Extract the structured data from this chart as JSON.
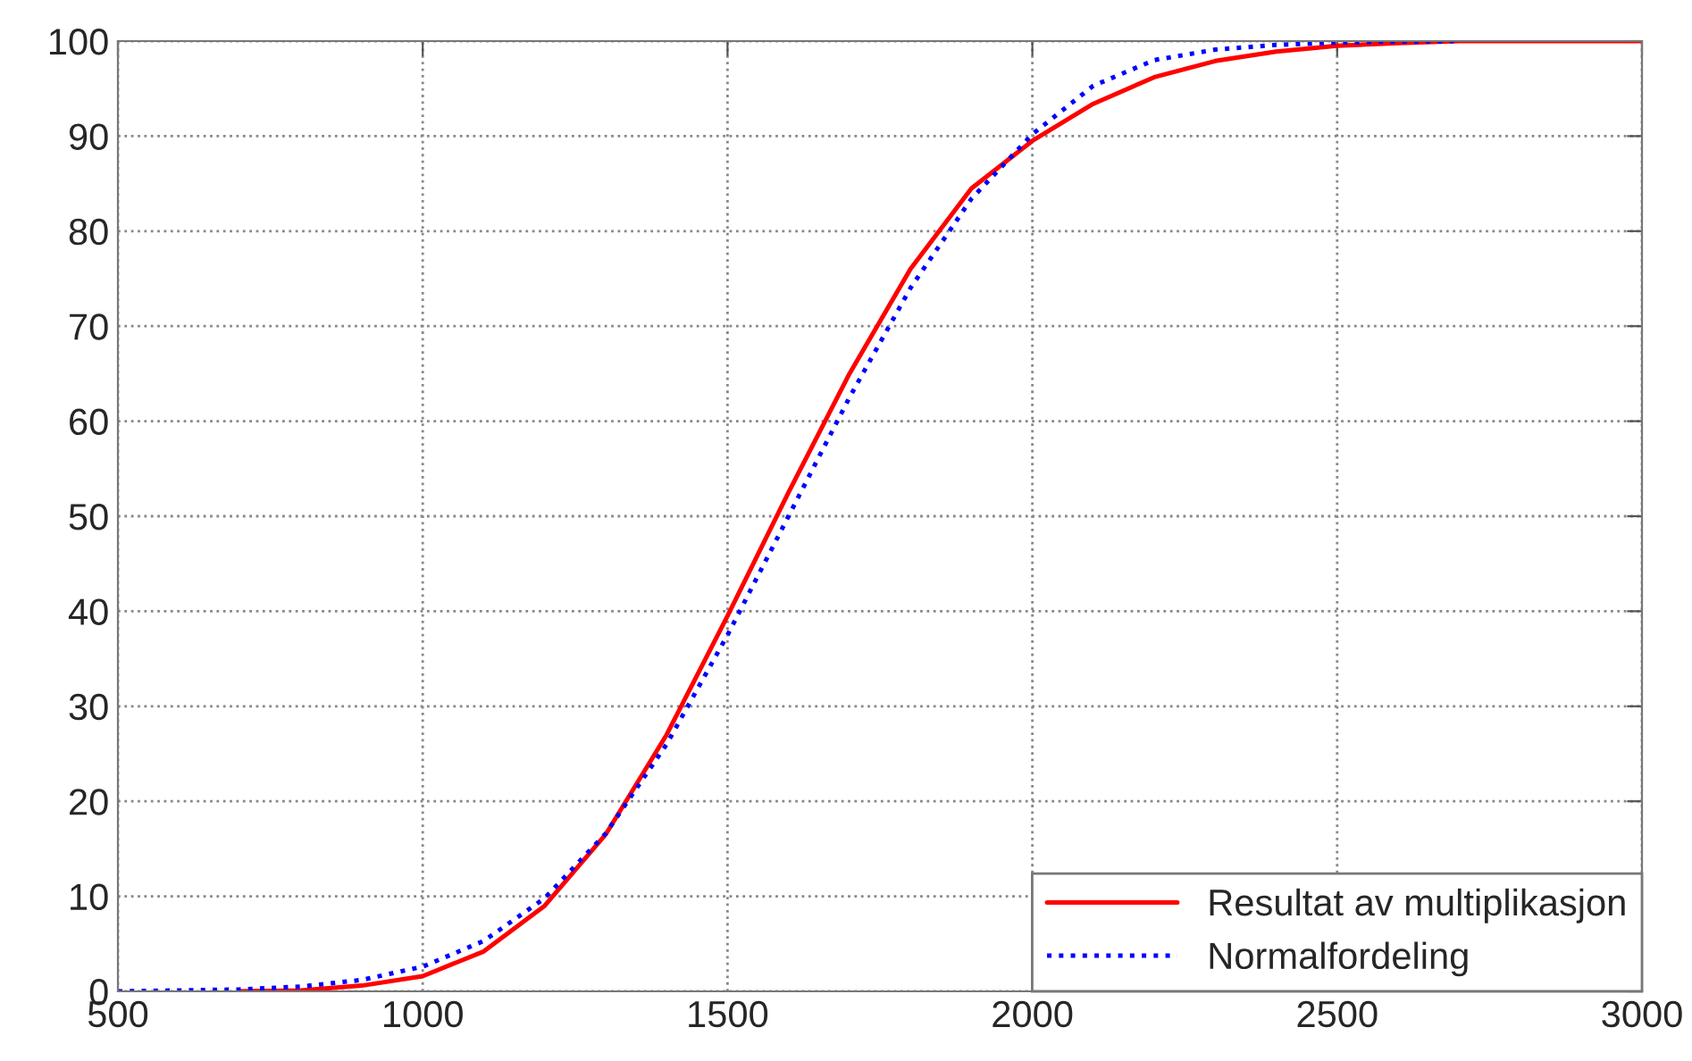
{
  "chart_data": {
    "type": "line",
    "xlim": [
      500,
      3000
    ],
    "ylim": [
      0,
      100
    ],
    "xticks": [
      500,
      1000,
      1500,
      2000,
      2500,
      3000
    ],
    "yticks": [
      0,
      10,
      20,
      30,
      40,
      50,
      60,
      70,
      80,
      90,
      100
    ],
    "grid": true,
    "legend": "bottom right",
    "series": [
      {
        "name": "Resultat av multiplikasjon",
        "color": "#ff0000",
        "line_style": "solid",
        "x": [
          700,
          800,
          900,
          1000,
          1100,
          1200,
          1300,
          1400,
          1500,
          1600,
          1700,
          1800,
          1900,
          2000,
          2100,
          2200,
          2300,
          2400,
          2500,
          2600,
          2700,
          2800,
          2900,
          3000
        ],
        "values": [
          0,
          0.1,
          0.6,
          1.6,
          4.2,
          9,
          16.5,
          27,
          39.5,
          52.5,
          65,
          76,
          84.5,
          89.5,
          93.4,
          96.2,
          97.9,
          98.9,
          99.5,
          99.8,
          100,
          100,
          100,
          100
        ]
      },
      {
        "name": "Normalfordeling",
        "color": "#0000ff",
        "line_style": "dotted",
        "x": [
          500,
          600,
          700,
          800,
          900,
          1000,
          1100,
          1200,
          1300,
          1400,
          1500,
          1600,
          1700,
          1800,
          1900,
          2000,
          2100,
          2200,
          2300,
          2400,
          2500,
          2600,
          2700
        ],
        "values": [
          0,
          0.1,
          0.2,
          0.5,
          1.2,
          2.6,
          5.3,
          9.8,
          16.6,
          26,
          37.5,
          50,
          62.5,
          74,
          83.4,
          90.2,
          95.3,
          98,
          99.1,
          99.6,
          99.85,
          99.95,
          100
        ]
      }
    ]
  }
}
